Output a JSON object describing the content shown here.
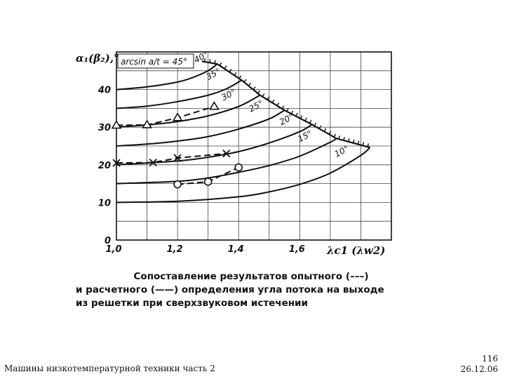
{
  "chart_data": {
    "type": "line",
    "ylabel": "α₁(β₂),°",
    "xlabel": "λc1 (λw2)",
    "boundary_label": "arcsin a/t = 45°",
    "xlim": [
      1.0,
      1.9
    ],
    "ylim": [
      0,
      50
    ],
    "x_ticks": [
      1.0,
      1.2,
      1.4,
      1.6
    ],
    "x_tick_labels": [
      "1,0",
      "1,2",
      "1,4",
      "1,6"
    ],
    "y_ticks": [
      0,
      10,
      20,
      30,
      40
    ],
    "y_tick_labels": [
      "0",
      "10",
      "20",
      "30",
      "40"
    ],
    "grid": true,
    "series": [
      {
        "name": "40°",
        "label_at": [
          1.26,
          47.0
        ],
        "points": [
          [
            1.0,
            40.0
          ],
          [
            1.1,
            40.7
          ],
          [
            1.2,
            42.0
          ],
          [
            1.25,
            43.2
          ],
          [
            1.3,
            45.0
          ],
          [
            1.33,
            46.8
          ]
        ]
      },
      {
        "name": "35°",
        "label_at": [
          1.3,
          42.5
        ],
        "points": [
          [
            1.0,
            35.0
          ],
          [
            1.1,
            35.6
          ],
          [
            1.2,
            36.8
          ],
          [
            1.3,
            38.5
          ],
          [
            1.36,
            40.2
          ],
          [
            1.41,
            42.5
          ]
        ]
      },
      {
        "name": "30°",
        "label_at": [
          1.35,
          37.0
        ],
        "points": [
          [
            1.0,
            30.0
          ],
          [
            1.1,
            30.6
          ],
          [
            1.2,
            31.5
          ],
          [
            1.3,
            33.0
          ],
          [
            1.4,
            35.5
          ],
          [
            1.47,
            38.5
          ]
        ]
      },
      {
        "name": "25°",
        "label_at": [
          1.44,
          34.0
        ],
        "points": [
          [
            1.0,
            25.0
          ],
          [
            1.1,
            25.5
          ],
          [
            1.2,
            26.3
          ],
          [
            1.3,
            27.5
          ],
          [
            1.4,
            29.5
          ],
          [
            1.5,
            32.2
          ],
          [
            1.55,
            34.5
          ]
        ]
      },
      {
        "name": "20°",
        "label_at": [
          1.54,
          30.5
        ],
        "points": [
          [
            1.0,
            20.0
          ],
          [
            1.2,
            21.0
          ],
          [
            1.3,
            22.0
          ],
          [
            1.4,
            23.5
          ],
          [
            1.5,
            25.8
          ],
          [
            1.6,
            28.8
          ],
          [
            1.64,
            30.7
          ]
        ]
      },
      {
        "name": "15°",
        "label_at": [
          1.6,
          26.0
        ],
        "points": [
          [
            1.0,
            15.0
          ],
          [
            1.2,
            15.6
          ],
          [
            1.3,
            16.5
          ],
          [
            1.4,
            18.0
          ],
          [
            1.5,
            19.8
          ],
          [
            1.6,
            22.3
          ],
          [
            1.7,
            26.0
          ],
          [
            1.72,
            27.0
          ]
        ]
      },
      {
        "name": "10°",
        "label_at": [
          1.72,
          22.0
        ],
        "points": [
          [
            1.0,
            10.0
          ],
          [
            1.2,
            10.3
          ],
          [
            1.4,
            11.5
          ],
          [
            1.5,
            12.8
          ],
          [
            1.6,
            14.8
          ],
          [
            1.7,
            17.8
          ],
          [
            1.8,
            22.5
          ],
          [
            1.83,
            24.6
          ]
        ]
      }
    ],
    "boundary": [
      [
        1.28,
        47.5
      ],
      [
        1.33,
        46.8
      ],
      [
        1.41,
        42.5
      ],
      [
        1.47,
        38.5
      ],
      [
        1.55,
        34.5
      ],
      [
        1.64,
        30.7
      ],
      [
        1.72,
        27.0
      ],
      [
        1.83,
        24.6
      ]
    ],
    "experimental": [
      {
        "marker": "triangle",
        "points": [
          [
            1.0,
            30.5
          ],
          [
            1.1,
            30.6
          ],
          [
            1.2,
            32.5
          ],
          [
            1.32,
            35.5
          ]
        ]
      },
      {
        "marker": "x",
        "points": [
          [
            1.0,
            20.5
          ],
          [
            1.12,
            20.6
          ],
          [
            1.2,
            21.8
          ],
          [
            1.36,
            23.0
          ]
        ]
      },
      {
        "marker": "circle",
        "points": [
          [
            1.2,
            14.8
          ],
          [
            1.3,
            15.5
          ],
          [
            1.4,
            19.3
          ]
        ]
      }
    ]
  },
  "caption": {
    "line1": "Сопоставление результатов опытного (–––)",
    "line2": "и расчетного (——) определения угла потока на выходе",
    "line3": "из решетки при сверхзвуковом истечении"
  },
  "footer": {
    "left": "Машины низкотемпературной техники часть 2",
    "page": "116",
    "date": "26.12.06"
  }
}
